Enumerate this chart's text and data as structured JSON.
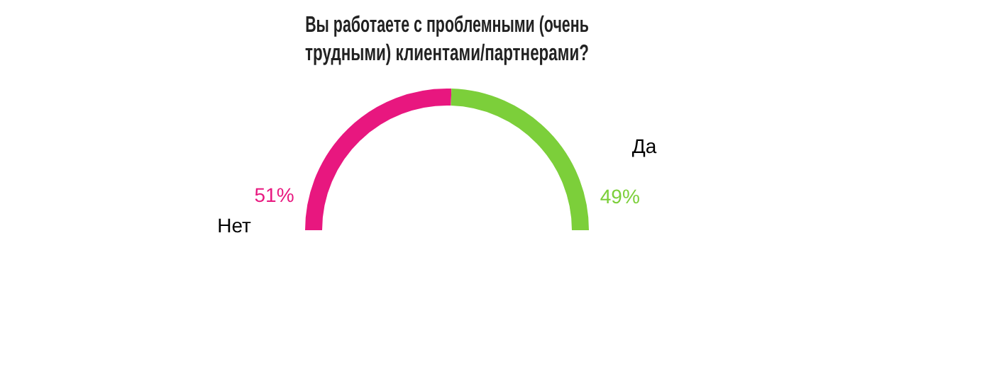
{
  "chart_data": {
    "type": "donut",
    "title": "Вы работаете с проблемными (очень трудными) клиентами/партнерами?",
    "categories": [
      "Нет",
      "Да"
    ],
    "values": [
      51,
      49
    ],
    "colors": [
      "#e8177f",
      "#7ccf3a"
    ],
    "value_labels": [
      "51%",
      "49%"
    ],
    "legend": false
  }
}
